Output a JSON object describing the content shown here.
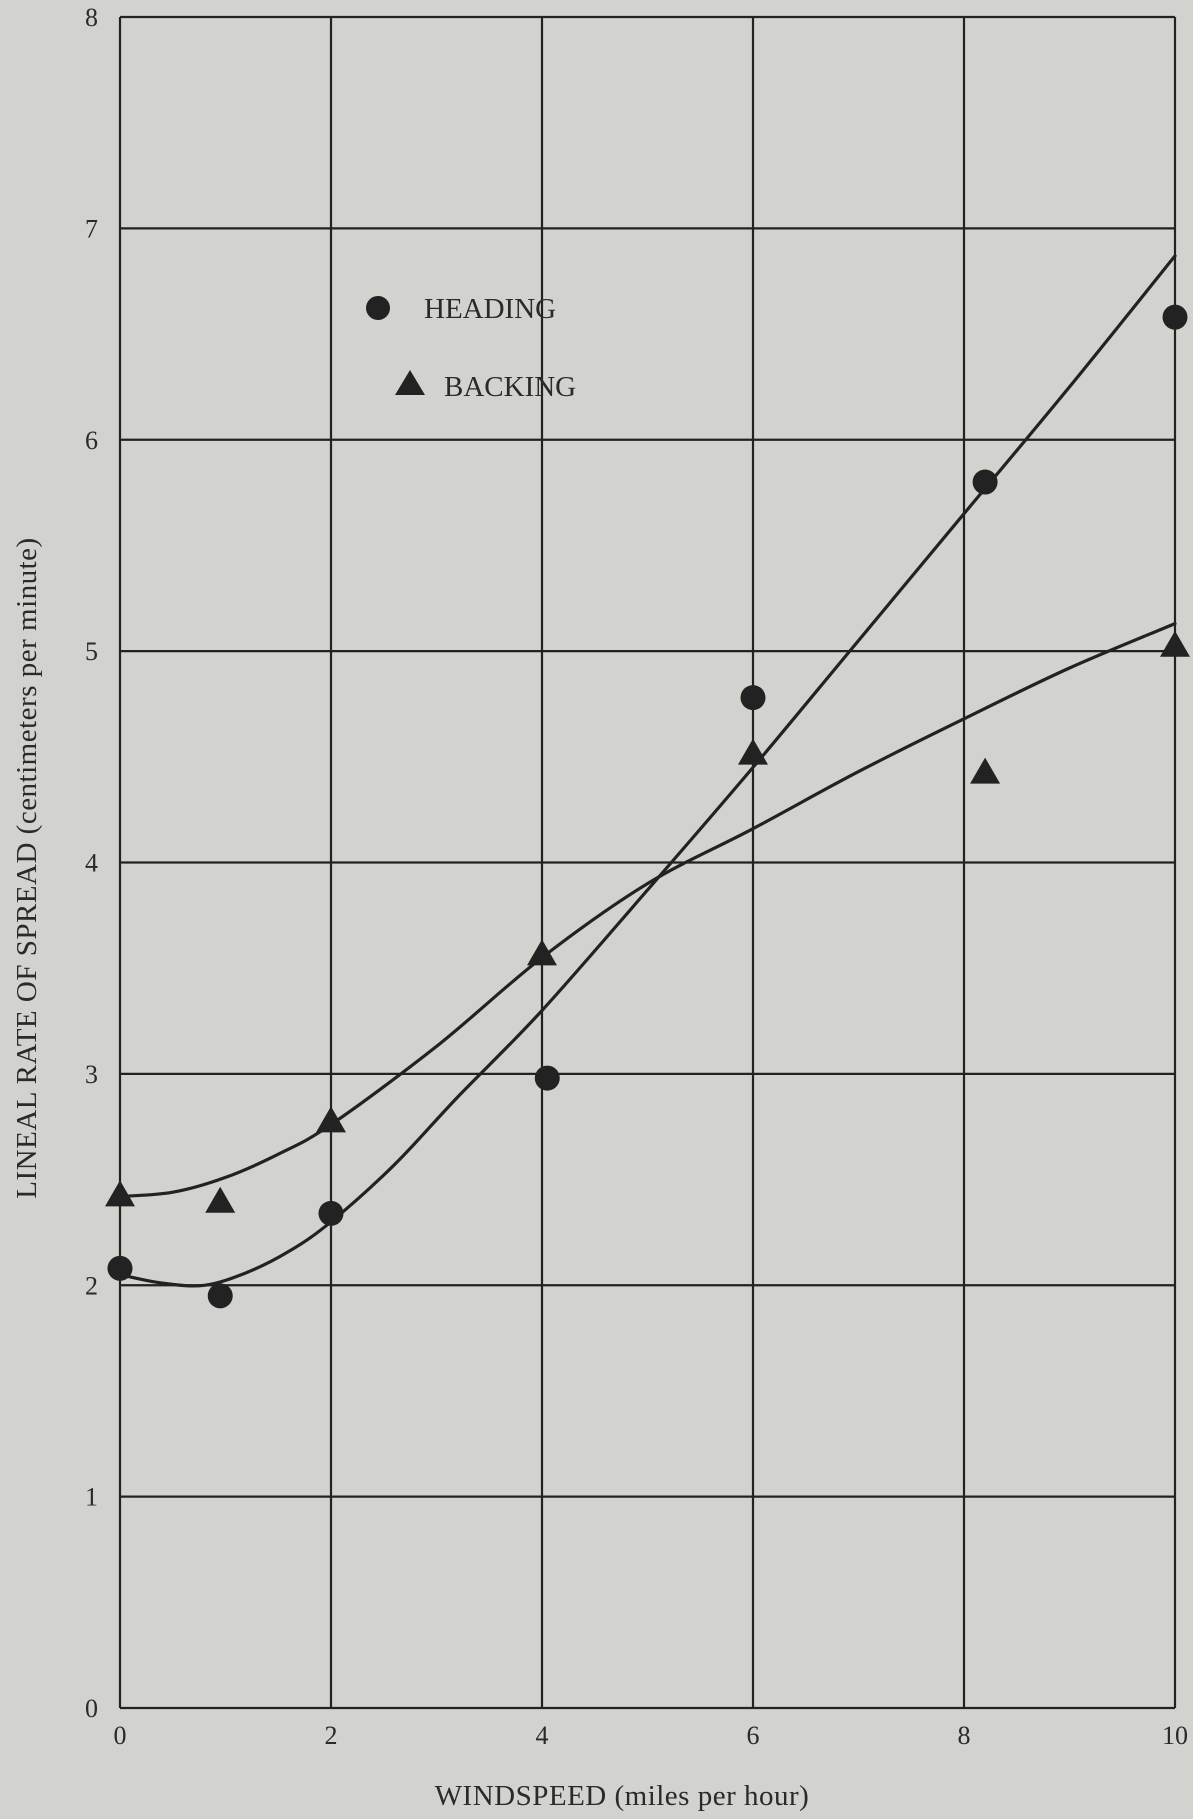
{
  "chart_data": {
    "type": "scatter",
    "xlabel": "WINDSPEED  (miles per hour)",
    "ylabel": "LINEAL RATE OF SPREAD (centimeters per minute)",
    "xlim": [
      0,
      10
    ],
    "ylim": [
      0,
      8
    ],
    "x_ticks": [
      "0",
      "2",
      "4",
      "6",
      "8",
      "10"
    ],
    "y_ticks": [
      "0",
      "1",
      "2",
      "3",
      "4",
      "5",
      "6",
      "7",
      "8"
    ],
    "grid": true,
    "legend_position": "top-left",
    "series": [
      {
        "name": "HEADING",
        "marker": "circle",
        "points": [
          {
            "x": 0,
            "y": 2.08
          },
          {
            "x": 0.95,
            "y": 1.95
          },
          {
            "x": 2,
            "y": 2.34
          },
          {
            "x": 4.05,
            "y": 2.98
          },
          {
            "x": 6,
            "y": 4.78
          },
          {
            "x": 8.2,
            "y": 5.8
          },
          {
            "x": 10,
            "y": 6.58
          }
        ],
        "fit_curve": [
          {
            "x": 0,
            "y": 2.05
          },
          {
            "x": 0.4,
            "y": 2.01
          },
          {
            "x": 0.8,
            "y": 2.0
          },
          {
            "x": 1.2,
            "y": 2.06
          },
          {
            "x": 1.6,
            "y": 2.16
          },
          {
            "x": 2,
            "y": 2.3
          },
          {
            "x": 2.6,
            "y": 2.57
          },
          {
            "x": 3.2,
            "y": 2.89
          },
          {
            "x": 4,
            "y": 3.3
          },
          {
            "x": 5,
            "y": 3.87
          },
          {
            "x": 6,
            "y": 4.45
          },
          {
            "x": 7,
            "y": 5.05
          },
          {
            "x": 8,
            "y": 5.65
          },
          {
            "x": 9,
            "y": 6.25
          },
          {
            "x": 10,
            "y": 6.87
          }
        ]
      },
      {
        "name": "BACKING",
        "marker": "triangle",
        "points": [
          {
            "x": 0,
            "y": 2.42
          },
          {
            "x": 0.95,
            "y": 2.39
          },
          {
            "x": 2,
            "y": 2.77
          },
          {
            "x": 4,
            "y": 3.56
          },
          {
            "x": 6,
            "y": 4.51
          },
          {
            "x": 8.2,
            "y": 4.42
          },
          {
            "x": 10,
            "y": 5.02
          }
        ],
        "fit_curve": [
          {
            "x": 0,
            "y": 2.42
          },
          {
            "x": 0.5,
            "y": 2.44
          },
          {
            "x": 1,
            "y": 2.51
          },
          {
            "x": 1.5,
            "y": 2.62
          },
          {
            "x": 2,
            "y": 2.76
          },
          {
            "x": 3,
            "y": 3.13
          },
          {
            "x": 4,
            "y": 3.55
          },
          {
            "x": 5,
            "y": 3.9
          },
          {
            "x": 6,
            "y": 4.16
          },
          {
            "x": 7,
            "y": 4.43
          },
          {
            "x": 8,
            "y": 4.68
          },
          {
            "x": 9,
            "y": 4.92
          },
          {
            "x": 10,
            "y": 5.13
          }
        ]
      }
    ]
  },
  "colors": {
    "background": "#d2d2cf",
    "ink": "#222222"
  }
}
